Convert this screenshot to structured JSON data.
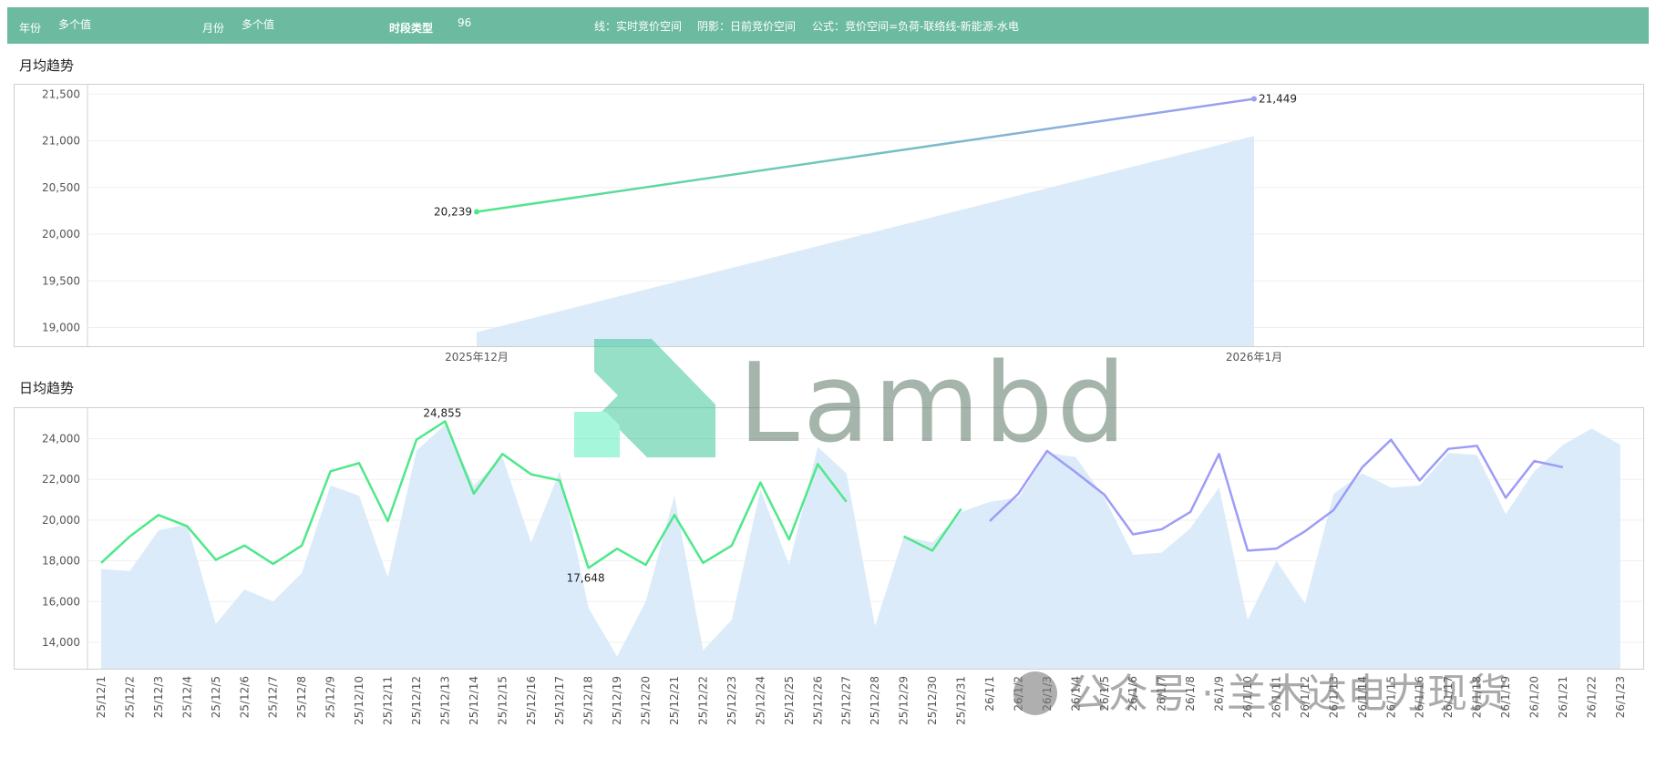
{
  "filters": {
    "year_label": "年份",
    "year_value": "多个值",
    "month_label": "月份",
    "month_value": "多个值",
    "period_label": "时段类型",
    "period_value": "96",
    "line_note": "线：实时竞价空间",
    "shade_note": "阴影：日前竞价空间",
    "formula_note": "公式：竞价空间=负荷-联络线-新能源-水电"
  },
  "watermark": {
    "brand": "Lambda",
    "wechat": "公众号 · 兰木达电力现货",
    "colors": {
      "green": "#3fc79b",
      "gray": "#5f7a68"
    }
  },
  "colors": {
    "header": "#6cbba0",
    "line_green": "#4ee88a",
    "line_purple": "#9d9cf7",
    "area": "#d6e8f8"
  },
  "chart_data": [
    {
      "type": "line",
      "title": "月均趋势",
      "categories": [
        "2025年12月",
        "2026年1月"
      ],
      "series": [
        {
          "name": "实时竞价空间",
          "values": [
            20239,
            21449
          ],
          "data_labels": [
            "20,239",
            "21,449"
          ]
        },
        {
          "name": "日前竞价空间",
          "type": "area",
          "values": [
            18950,
            21050
          ]
        }
      ],
      "ylim": [
        18800,
        21600
      ],
      "yticks": [
        19000,
        19500,
        20000,
        20500,
        21000,
        21500
      ],
      "ytick_labels": [
        "19,000",
        "19,500",
        "20,000",
        "20,500",
        "21,000",
        "21,500"
      ],
      "grid": true
    },
    {
      "type": "line",
      "title": "日均趋势",
      "categories": [
        "25/12/1",
        "25/12/2",
        "25/12/3",
        "25/12/4",
        "25/12/5",
        "25/12/6",
        "25/12/7",
        "25/12/8",
        "25/12/9",
        "25/12/10",
        "25/12/11",
        "25/12/12",
        "25/12/13",
        "25/12/14",
        "25/12/15",
        "25/12/16",
        "25/12/17",
        "25/12/18",
        "25/12/19",
        "25/12/20",
        "25/12/21",
        "25/12/22",
        "25/12/23",
        "25/12/24",
        "25/12/25",
        "25/12/26",
        "25/12/27",
        "25/12/28",
        "25/12/29",
        "25/12/30",
        "25/12/31",
        "26/1/1",
        "26/1/2",
        "26/1/3",
        "26/1/4",
        "26/1/5",
        "26/1/6",
        "26/1/7",
        "26/1/8",
        "26/1/9",
        "26/1/10",
        "26/1/11",
        "26/1/12",
        "26/1/13",
        "26/1/14",
        "26/1/15",
        "26/1/16",
        "26/1/17",
        "26/1/18",
        "26/1/19",
        "26/1/20",
        "26/1/21",
        "26/1/22",
        "26/1/23"
      ],
      "series": [
        {
          "name": "实时竞价空间",
          "values": [
            17900,
            19200,
            20250,
            19700,
            18050,
            18750,
            17850,
            18750,
            22400,
            22800,
            19950,
            23950,
            24855,
            21300,
            23250,
            22250,
            21950,
            17648,
            18600,
            17800,
            20250,
            17900,
            18750,
            21850,
            19050,
            22750,
            20900,
            null,
            19200,
            18500,
            20550,
            19950,
            21300,
            23400,
            22350,
            21250,
            19300,
            19550,
            20400,
            23250,
            18500,
            18600,
            19450,
            20500,
            22600,
            23950,
            21950,
            23500,
            23650,
            21100,
            22900,
            22600,
            null,
            null
          ]
        },
        {
          "name": "日前竞价空间",
          "type": "area",
          "values": [
            17600,
            17500,
            19500,
            19800,
            14900,
            16600,
            16000,
            17400,
            21700,
            21200,
            17200,
            23400,
            24700,
            21700,
            23100,
            18900,
            22400,
            15700,
            13300,
            16000,
            21200,
            13600,
            15100,
            21500,
            17800,
            23600,
            22300,
            14800,
            19200,
            18900,
            20400,
            20900,
            21100,
            23300,
            23100,
            21100,
            18300,
            18400,
            19600,
            21600,
            15100,
            18000,
            15900,
            21300,
            22300,
            21600,
            21700,
            23300,
            23200,
            20300,
            22400,
            23700,
            24500,
            23700
          ]
        }
      ],
      "data_labels": [
        {
          "category": "25/12/13",
          "text": "24,855"
        },
        {
          "category": "25/12/18",
          "text": "17,648"
        }
      ],
      "ylim": [
        12700,
        25500
      ],
      "yticks": [
        14000,
        16000,
        18000,
        20000,
        22000,
        24000
      ],
      "ytick_labels": [
        "14,000",
        "16,000",
        "18,000",
        "20,000",
        "22,000",
        "24,000"
      ],
      "grid": true
    }
  ]
}
